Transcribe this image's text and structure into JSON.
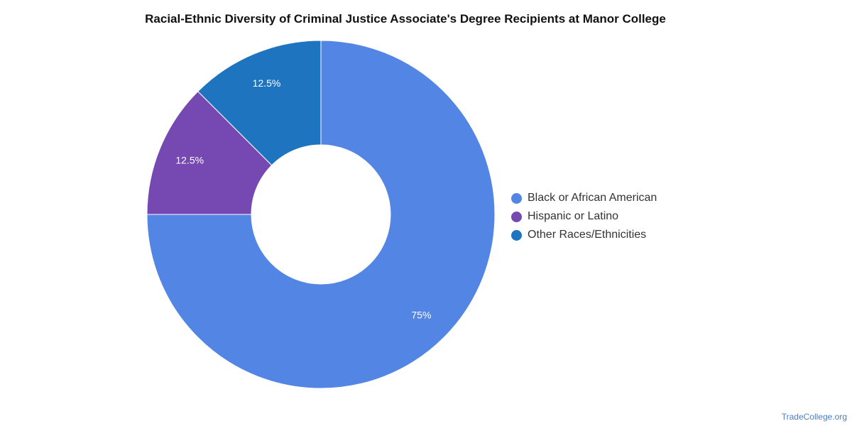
{
  "chart_data": {
    "type": "pie",
    "variant": "donut",
    "title": "Racial-Ethnic Diversity of Criminal Justice Associate's Degree Recipients at Manor College",
    "slices": [
      {
        "label": "Black or African American",
        "value": 75,
        "display": "75%",
        "color": "#5386e4"
      },
      {
        "label": "Hispanic or Latino",
        "value": 12.5,
        "display": "12.5%",
        "color": "#7549b1"
      },
      {
        "label": "Other Races/Ethnicities",
        "value": 12.5,
        "display": "12.5%",
        "color": "#1f74bf"
      }
    ],
    "legend_position": "right"
  },
  "footer": {
    "credit": "TradeCollege.org"
  }
}
